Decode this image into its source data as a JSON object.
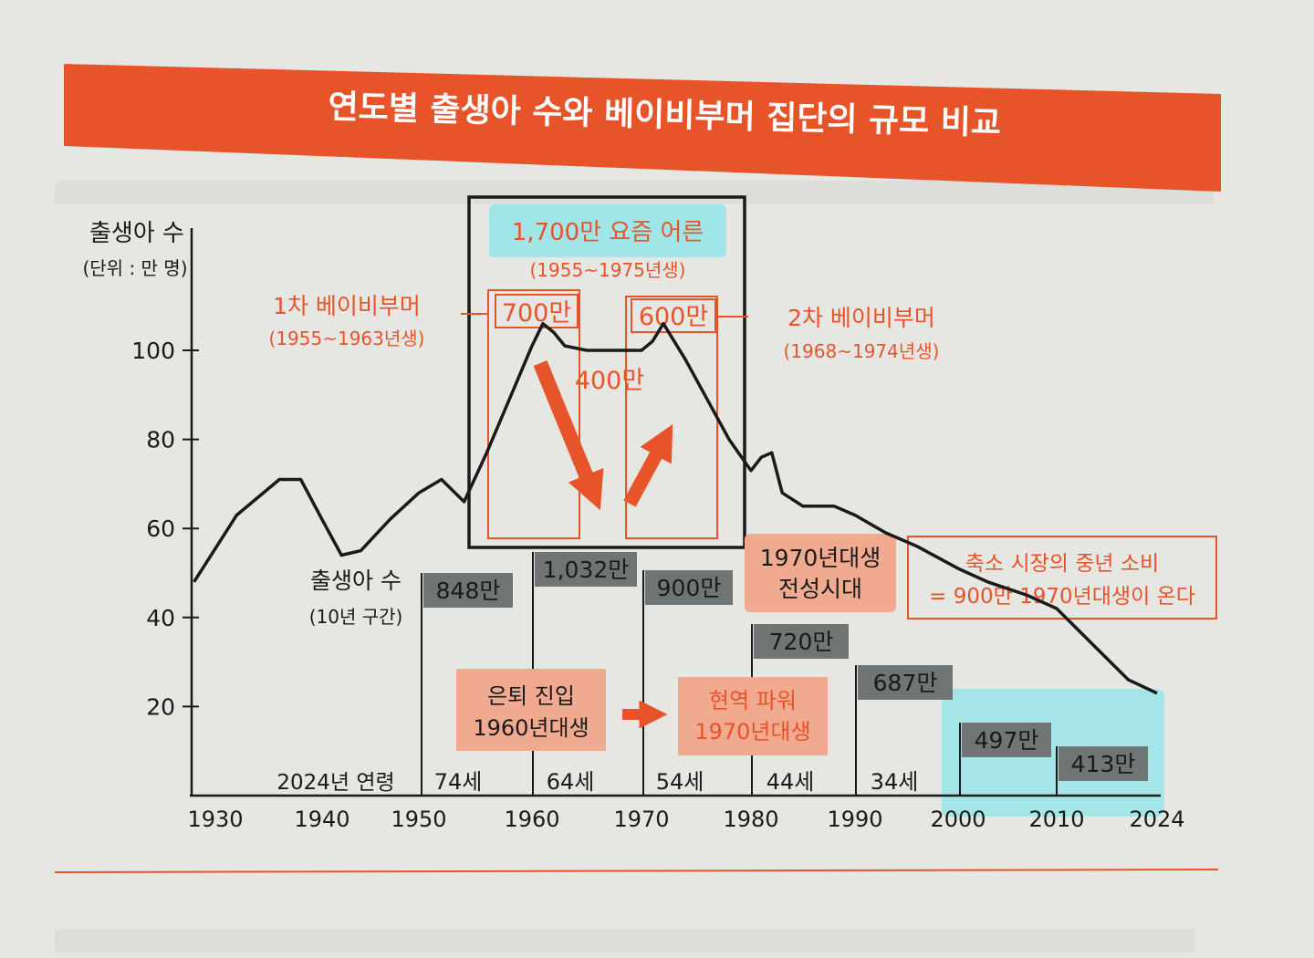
{
  "colors": {
    "accent": "#e8542a",
    "background": "#e6e6e2",
    "line": "#1a1a1a",
    "gray_box": "#6f7475",
    "cyan": "#8ee6ea",
    "salmon": "#f0aa90"
  },
  "chart_data": {
    "type": "line",
    "title": "연도별 출생아 수와 베이비부머 집단의 규모 비교",
    "ylabel": "출생아 수",
    "yunit": "(단위 : 만 명)",
    "ylim": [
      0,
      110
    ],
    "yticks": [
      "20",
      "40",
      "60",
      "80",
      "100"
    ],
    "xticks": [
      "1930",
      "1940",
      "1950",
      "1960",
      "1970",
      "1980",
      "1990",
      "2000",
      "2010",
      "2024"
    ],
    "grid": false,
    "series": [
      {
        "x": [
          1928,
          1932,
          1936,
          1938,
          1940,
          1942,
          1944,
          1947,
          1950,
          1952,
          1954,
          1956,
          1958,
          1960,
          1961,
          1962,
          1963,
          1965,
          1968,
          1970,
          1971,
          1972,
          1974,
          1976,
          1978,
          1980,
          1981,
          1982,
          1983,
          1985,
          1988,
          1990,
          1993,
          1996,
          2000,
          2003,
          2007,
          2010,
          2015,
          2020,
          2024
        ],
        "y": [
          48,
          63,
          71,
          71,
          62,
          54,
          55,
          62,
          68,
          71,
          66,
          77,
          89,
          101,
          106,
          104,
          101,
          100,
          100,
          100,
          102,
          106,
          98,
          89,
          80,
          73,
          76,
          77,
          68,
          65,
          65,
          63,
          59,
          56,
          51,
          48,
          45,
          42,
          34,
          26,
          23
        ]
      }
    ],
    "decade_label_title": "출생아 수",
    "decade_label_sub": "(10년 구간)",
    "decade_boxes": [
      {
        "label": "848만"
      },
      {
        "label": "1,032만"
      },
      {
        "label": "900만"
      },
      {
        "label": "720만"
      },
      {
        "label": "687만"
      },
      {
        "label": "497만"
      },
      {
        "label": "413만"
      }
    ],
    "age_row_label": "2024년 연령",
    "age_labels": [
      "74세",
      "64세",
      "54세",
      "44세",
      "34세"
    ],
    "annotations": {
      "big_group": "1,700만 요즘 어른",
      "big_group_years": "(1955~1975년생)",
      "first_boom": "1차 베이비부머",
      "first_boom_years": "(1955~1963년생)",
      "second_boom": "2차 베이비부머",
      "second_boom_years": "(1968~1974년생)",
      "first_count": "700만",
      "second_count": "600만",
      "middle_count": "400만",
      "gen1970_line1": "1970년대생",
      "gen1970_line2": "전성시대",
      "market_line1": "축소 시장의 중년 소비",
      "market_line2": "= 900만 1970년대생이 온다",
      "retire_line1": "은퇴 진입",
      "retire_line2": "1960년대생",
      "active_line1": "현역 파워",
      "active_line2": "1970년대생"
    }
  }
}
